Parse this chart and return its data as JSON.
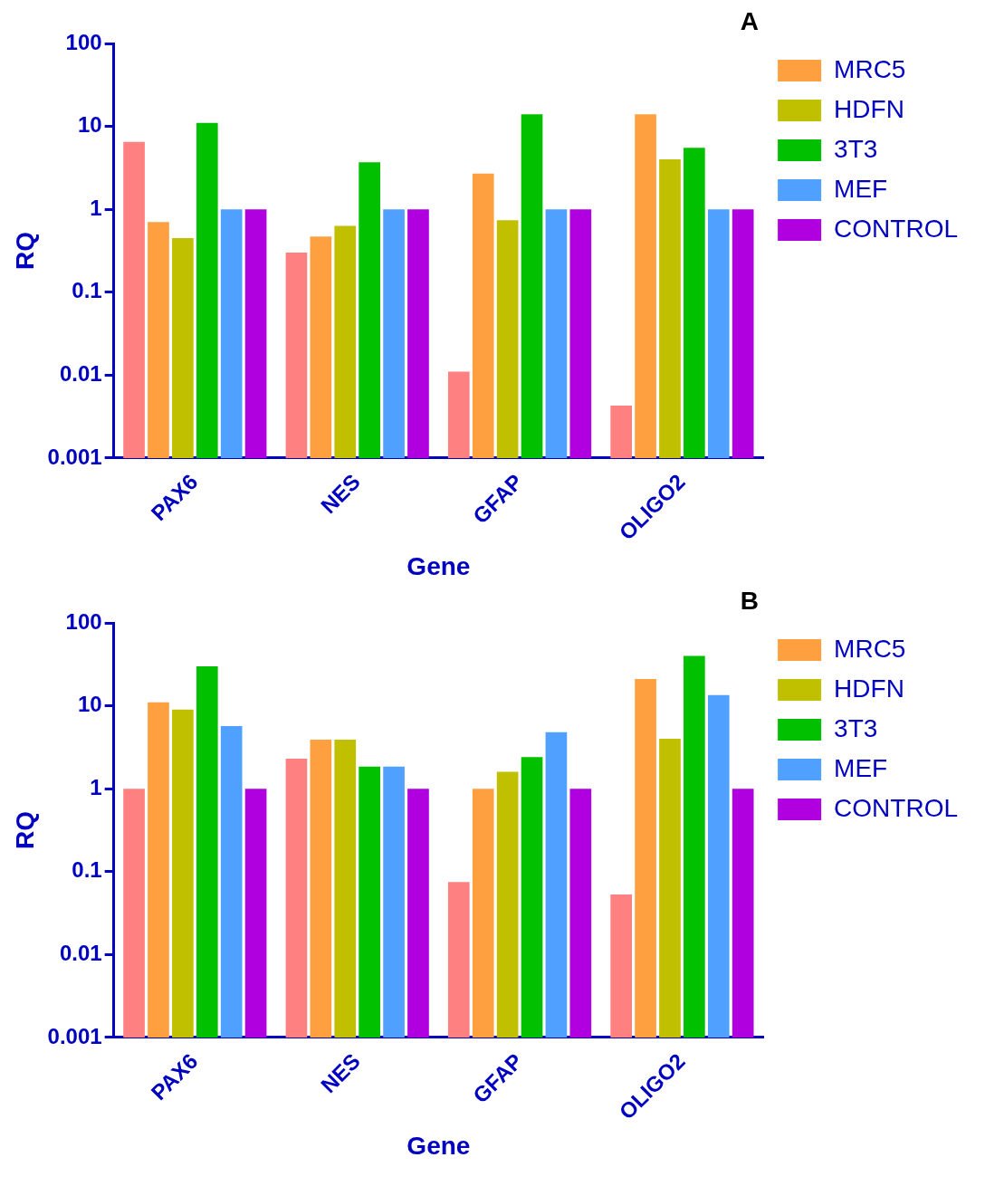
{
  "chart_data": [
    {
      "type": "bar",
      "title": "A",
      "xlabel": "Gene",
      "ylabel": "RQ",
      "categories": [
        "PAX6",
        "NES",
        "GFAP",
        "OLIGO2"
      ],
      "log": "y",
      "ylim": [
        0.001,
        100
      ],
      "yticks": [
        0.001,
        0.01,
        0.1,
        1,
        10,
        100
      ],
      "legend": "top right",
      "grid": false,
      "series": [
        {
          "color": "#ff8080",
          "values": [
            6.5,
            0.3,
            0.011,
            0.0043
          ]
        },
        {
          "name": "MRC5",
          "color": "#ffa040",
          "values": [
            0.7,
            0.47,
            2.7,
            14
          ]
        },
        {
          "name": "HDFN",
          "color": "#c0c000",
          "values": [
            0.45,
            0.63,
            0.74,
            4
          ]
        },
        {
          "name": "3T3",
          "color": "#00c000",
          "values": [
            11,
            3.7,
            14,
            5.5
          ]
        },
        {
          "name": "MEF",
          "color": "#50a0ff",
          "values": [
            1,
            1,
            1,
            1
          ]
        },
        {
          "name": "CONTROL",
          "color": "#b000e0",
          "values": [
            1,
            1,
            1,
            1
          ]
        }
      ]
    },
    {
      "type": "bar",
      "title": "B",
      "xlabel": "Gene",
      "ylabel": "RQ",
      "categories": [
        "PAX6",
        "NES",
        "GFAP",
        "OLIGO2"
      ],
      "log": "y",
      "ylim": [
        0.001,
        100
      ],
      "yticks": [
        0.001,
        0.01,
        0.1,
        1,
        10,
        100
      ],
      "legend": "top right",
      "grid": false,
      "series": [
        {
          "color": "#ff8080",
          "values": [
            1,
            2.3,
            0.075,
            0.053
          ]
        },
        {
          "name": "MRC5",
          "color": "#ffa040",
          "values": [
            11,
            3.9,
            1,
            21
          ]
        },
        {
          "name": "HDFN",
          "color": "#c0c000",
          "values": [
            9,
            3.9,
            1.6,
            4
          ]
        },
        {
          "name": "3T3",
          "color": "#00c000",
          "values": [
            30,
            1.85,
            2.4,
            40
          ]
        },
        {
          "name": "MEF",
          "color": "#50a0ff",
          "values": [
            5.7,
            1.85,
            4.8,
            13.5
          ]
        },
        {
          "name": "CONTROL",
          "color": "#b000e0",
          "values": [
            1,
            1,
            1,
            1
          ]
        }
      ]
    }
  ]
}
